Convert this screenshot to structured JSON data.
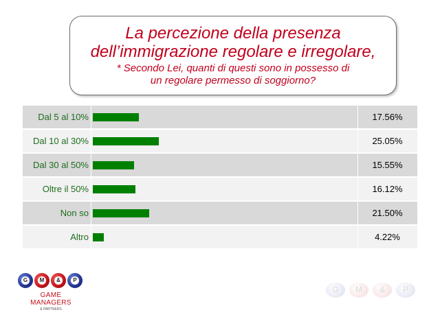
{
  "title": {
    "line1": "La percezione della presenza",
    "line2": "dell’immigrazione regolare e irregolare,",
    "sub1": "* Secondo Lei, quanti di questi sono in possesso di",
    "sub2": "un regolare permesso di soggiorno?"
  },
  "colors": {
    "title": "#c0001d",
    "bar": "#008000",
    "category_text": "#1e6b1e",
    "row_shaded": "#d9d9d9",
    "row_plain": "#f2f2f2"
  },
  "chart_data": {
    "type": "bar",
    "orientation": "horizontal",
    "categories": [
      "Dal 5 al 10%",
      "Dal 10 al 30%",
      "Dal 30 al 50%",
      "Oltre il 50%",
      "Non so",
      "Altro"
    ],
    "values": [
      17.56,
      25.05,
      15.55,
      16.12,
      21.5,
      4.22
    ],
    "value_labels": [
      "17.56%",
      "25.05%",
      "15.55%",
      "16.12%",
      "21.50%",
      "4.22%"
    ],
    "unit": "%",
    "xlim": [
      0,
      100
    ],
    "grid": false,
    "legend": "none"
  },
  "logo": {
    "balls": [
      "G",
      "M",
      "&",
      "P"
    ],
    "name_line1": "GAME",
    "name_line2": "MANAGERS",
    "name_line3": "& PARTNERS"
  },
  "watermark": {
    "balls": [
      "G",
      "M",
      "&",
      "P"
    ]
  }
}
